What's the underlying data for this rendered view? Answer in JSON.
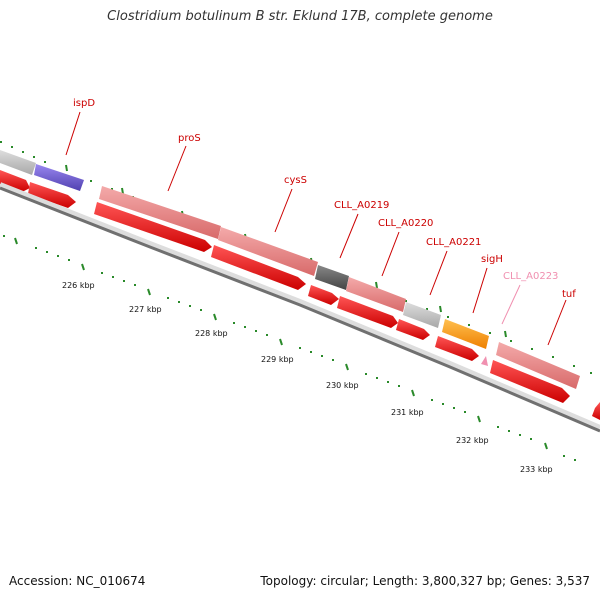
{
  "title": "Clostridium botulinum B str. Eklund 17B, complete genome",
  "footer": {
    "accession": "Accession: NC_010674",
    "stats": "Topology: circular; Length: 3,800,327 bp; Genes: 3,537"
  },
  "map": {
    "kbp_labels": [
      "226 kbp",
      "227 kbp",
      "228 kbp",
      "229 kbp",
      "230 kbp",
      "231 kbp",
      "232 kbp",
      "233 kbp"
    ],
    "gene_labels": [
      "ispD",
      "proS",
      "cysS",
      "CLL_A0219",
      "CLL_A0220",
      "CLL_A0221",
      "sigH",
      "CLL_A0223",
      "tuf"
    ]
  },
  "colors": {
    "label_red": "#cc0000",
    "label_pink": "#f090b0",
    "gene_salmon": "#e88a8a",
    "gene_gray": "#c0c0c0",
    "gene_dark": "#666666",
    "gene_purple": "#7060d0",
    "gene_orange": "#ff9900",
    "cds_red": "#ee0000",
    "backbone": "#777777",
    "tick_green": "#2a8a2a"
  }
}
